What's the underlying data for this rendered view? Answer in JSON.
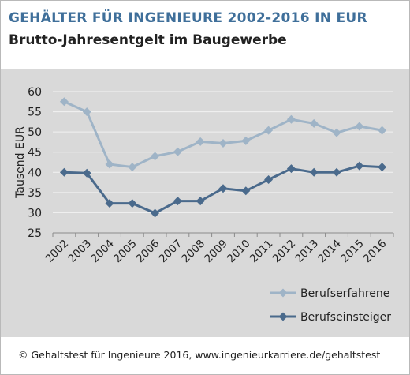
{
  "header": {
    "title": "GEHÄLTER FÜR INGENIEURE 2002-2016  IN EUR",
    "subtitle": "Brutto-Jahresentgelt im Baugewerbe"
  },
  "footer": {
    "text": "© Gehaltstest für Ingenieure 2016,  www.ingenieurkarriere.de/gehaltstest"
  },
  "chart_data": {
    "type": "line",
    "categories": [
      "2002",
      "2003",
      "2004",
      "2005",
      "2006",
      "2007",
      "2008",
      "2009",
      "2010",
      "2011",
      "2012",
      "2013",
      "2014",
      "2015",
      "2016"
    ],
    "ylabel": "Tausend EUR",
    "xlabel": "",
    "ylim": [
      25,
      60
    ],
    "yticks": [
      25,
      30,
      35,
      40,
      45,
      50,
      55,
      60
    ],
    "grid": true,
    "legend_position": "bottom-right",
    "series": [
      {
        "name": "Berufserfahrene",
        "color": "#9fb4c7",
        "values": [
          57.5,
          55.0,
          42.0,
          41.3,
          44.0,
          45.1,
          47.6,
          47.2,
          47.8,
          50.4,
          53.1,
          52.1,
          49.8,
          51.4,
          50.4
        ]
      },
      {
        "name": "Berufseinsteiger",
        "color": "#4a6a8c",
        "values": [
          40.0,
          39.8,
          32.3,
          32.3,
          29.9,
          32.9,
          32.9,
          36.0,
          35.4,
          38.2,
          40.9,
          40.0,
          40.0,
          41.6,
          41.3
        ]
      }
    ]
  }
}
